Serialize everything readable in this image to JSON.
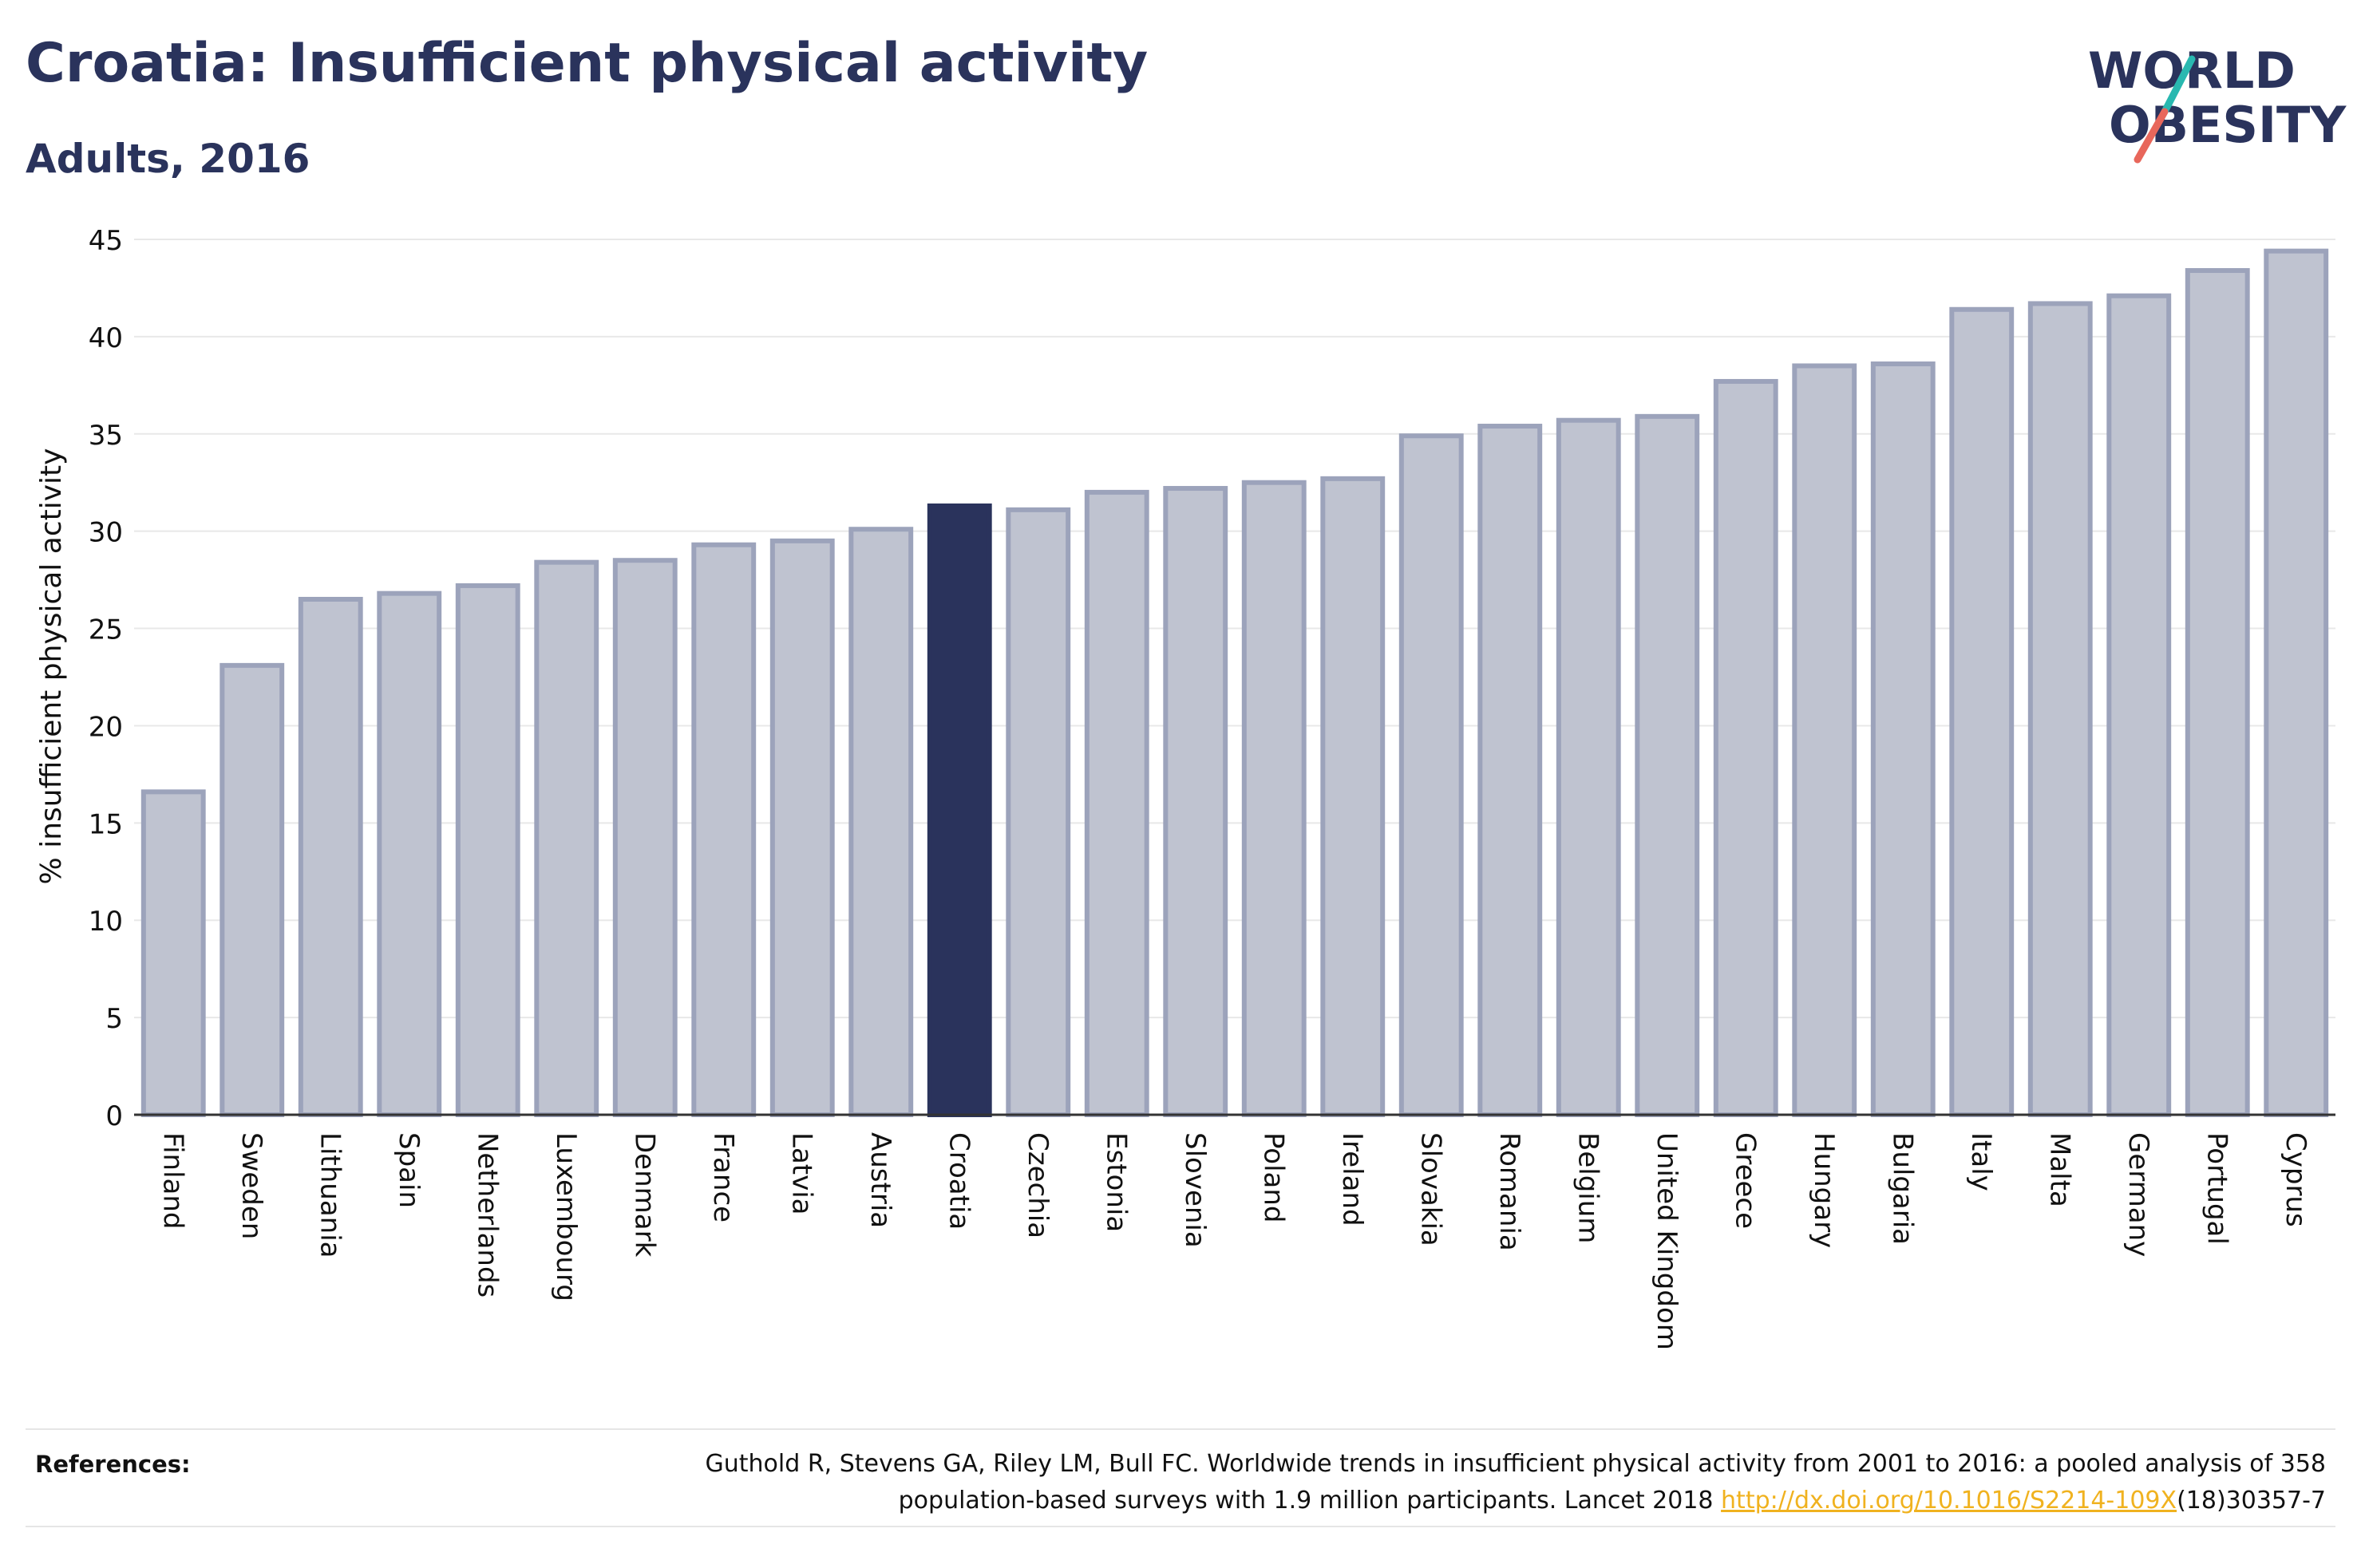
{
  "header": {
    "title": "Croatia: Insufficient physical activity",
    "subtitle": "Adults, 2016"
  },
  "logo": {
    "line1": "WORLD",
    "line2": "OBESITY",
    "text_color": "#2a335c",
    "slash_colors": [
      "#29b8b0",
      "#e8675b"
    ]
  },
  "chart_data": {
    "type": "bar",
    "title": "Croatia: Insufficient physical activity",
    "subtitle": "Adults, 2016",
    "xlabel": "",
    "ylabel": "% insufficient physical activity",
    "ylim": [
      0,
      45
    ],
    "yticks": [
      0,
      5,
      10,
      15,
      20,
      25,
      30,
      35,
      40,
      45
    ],
    "grid": true,
    "highlight": "Croatia",
    "colors": {
      "bar": "#bfc3d0",
      "bar_edge": "#9ca3bb",
      "highlight": "#2a335c",
      "grid": "#e8e8e8",
      "axis": "#333333"
    },
    "categories": [
      "Finland",
      "Sweden",
      "Lithuania",
      "Spain",
      "Netherlands",
      "Luxembourg",
      "Denmark",
      "France",
      "Latvia",
      "Austria",
      "Croatia",
      "Czechia",
      "Estonia",
      "Slovenia",
      "Poland",
      "Ireland",
      "Slovakia",
      "Romania",
      "Belgium",
      "United Kingdom",
      "Greece",
      "Hungary",
      "Bulgaria",
      "Italy",
      "Malta",
      "Germany",
      "Portugal",
      "Cyprus"
    ],
    "values": [
      16.6,
      23.1,
      26.5,
      26.8,
      27.2,
      28.4,
      28.5,
      29.3,
      29.5,
      30.1,
      31.3,
      31.1,
      32.0,
      32.2,
      32.5,
      32.7,
      34.9,
      35.4,
      35.7,
      35.9,
      37.7,
      38.5,
      38.6,
      41.4,
      41.7,
      42.1,
      43.4,
      44.4
    ]
  },
  "footer": {
    "references_label": "References:",
    "reference_text_1": "Guthold R, Stevens GA, Riley LM, Bull FC. Worldwide trends in insufficient physical activity from 2001 to 2016: a pooled analysis of 358",
    "reference_text_2": "population-based surveys with 1.9 million participants. Lancet 2018 ",
    "reference_link": "http://dx.doi.org/10.1016/S2214-109X",
    "reference_text_3": "(18)30357-7"
  }
}
